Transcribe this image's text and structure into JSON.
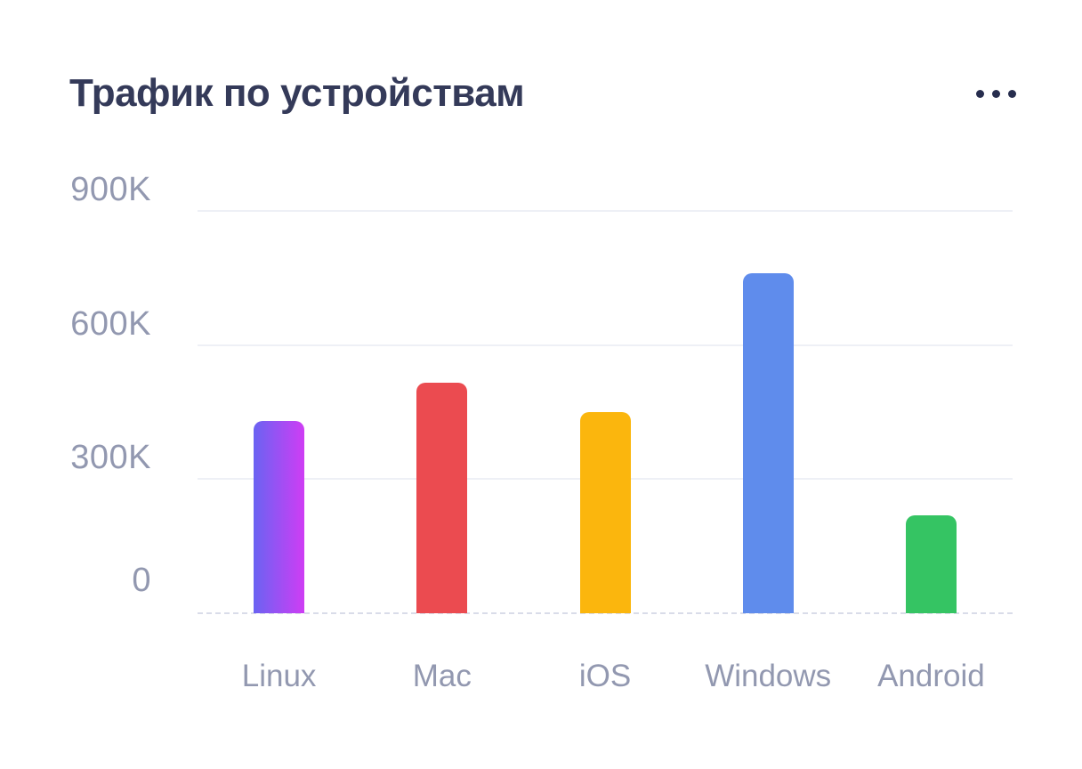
{
  "card": {
    "title": "Трафик по устройствам",
    "menu_icon": "ellipsis-icon"
  },
  "colors": {
    "background": "#ffffff",
    "title": "#343a59",
    "axis_label": "#9298b0",
    "gridline": "#eef0f6",
    "baseline": "#d9dce9",
    "menu_dots": "#272d4e"
  },
  "chart_data": {
    "type": "bar",
    "title": "Трафик по устройствам",
    "categories": [
      "Linux",
      "Mac",
      "iOS",
      "Windows",
      "Android"
    ],
    "values": [
      430000,
      515000,
      450000,
      760000,
      220000
    ],
    "y_ticks": [
      "900K",
      "600K",
      "300K",
      "0"
    ],
    "y_tick_values": [
      900000,
      600000,
      300000,
      0
    ],
    "ylim": [
      0,
      900000
    ],
    "xlabel": "",
    "ylabel": "",
    "grid": true,
    "legend": false,
    "bar_colors": [
      {
        "from": "#6a63f2",
        "to": "#cf3df4"
      },
      {
        "color": "#eb4b50"
      },
      {
        "color": "#fbb60d"
      },
      {
        "color": "#5f8cec"
      },
      {
        "color": "#35c463"
      }
    ]
  }
}
